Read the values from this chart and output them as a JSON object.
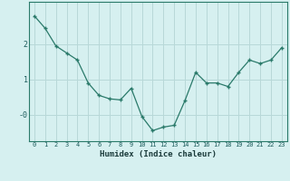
{
  "x": [
    0,
    1,
    2,
    3,
    4,
    5,
    6,
    7,
    8,
    9,
    10,
    11,
    12,
    13,
    14,
    15,
    16,
    17,
    18,
    19,
    20,
    21,
    22,
    23
  ],
  "y": [
    2.8,
    2.45,
    1.95,
    1.75,
    1.55,
    0.9,
    0.55,
    0.45,
    0.42,
    0.75,
    -0.05,
    -0.45,
    -0.35,
    -0.3,
    0.4,
    1.2,
    0.9,
    0.9,
    0.8,
    1.2,
    1.55,
    1.45,
    1.55,
    1.9
  ],
  "xlabel": "Humidex (Indice chaleur)",
  "line_color": "#2a7a6a",
  "bg_color": "#d6f0f0",
  "grid_color": "#b8d8d8",
  "ylim": [
    -0.75,
    3.2
  ],
  "ytick_vals": [
    0,
    1,
    2
  ],
  "ytick_labels": [
    "-0",
    "1",
    "2"
  ],
  "xticks": [
    0,
    1,
    2,
    3,
    4,
    5,
    6,
    7,
    8,
    9,
    10,
    11,
    12,
    13,
    14,
    15,
    16,
    17,
    18,
    19,
    20,
    21,
    22,
    23
  ]
}
